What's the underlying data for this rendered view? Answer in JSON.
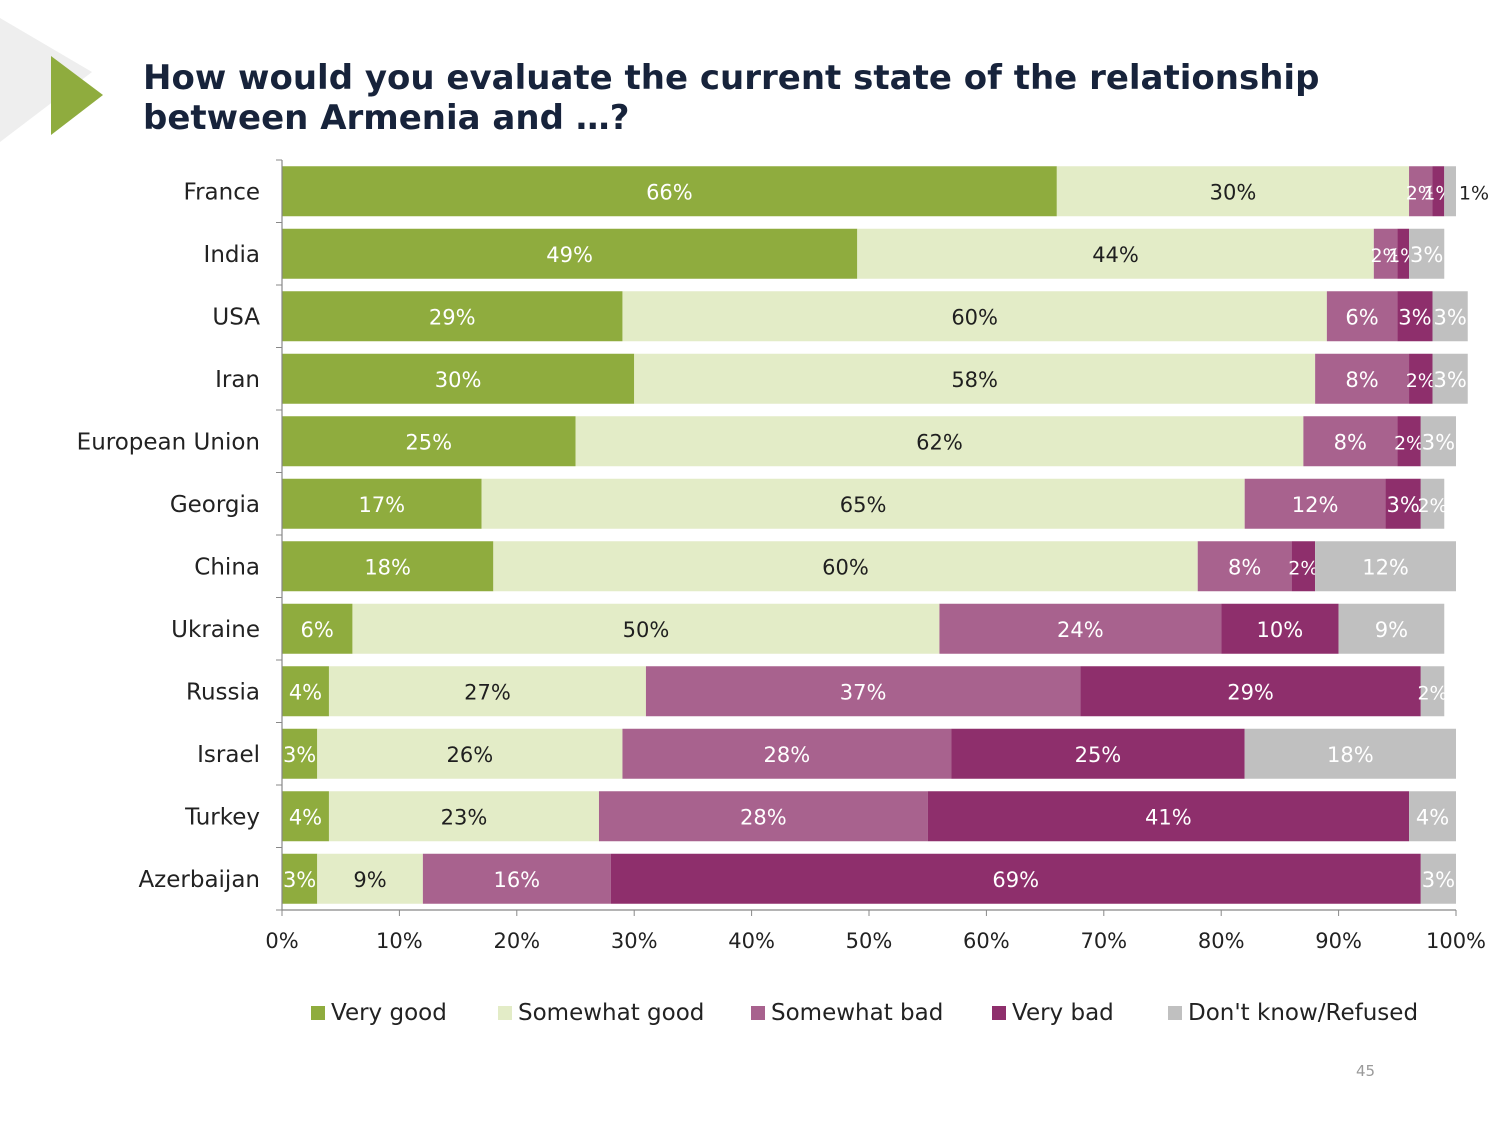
{
  "slide": {
    "title_line1": "How would you evaluate the current state of the relationship",
    "title_line2": "between Armenia and …?",
    "page_number": "45",
    "accent_color": "#8fac3e"
  },
  "chart_data": {
    "type": "bar",
    "orientation": "horizontal",
    "stacked": true,
    "title": "How would you evaluate the current state of the relationship between Armenia and …?",
    "categories": [
      "France",
      "India",
      "USA",
      "Iran",
      "European Union",
      "Georgia",
      "China",
      "Ukraine",
      "Russia",
      "Israel",
      "Turkey",
      "Azerbaijan"
    ],
    "series": [
      {
        "name": "Very good",
        "color": "#8fac3e",
        "label_color": "#ffffff",
        "values": [
          66,
          49,
          29,
          30,
          25,
          17,
          18,
          6,
          4,
          3,
          4,
          3
        ]
      },
      {
        "name": "Somewhat good",
        "color": "#e3ecc7",
        "label_color": "#1f1f1f",
        "values": [
          30,
          44,
          60,
          58,
          62,
          65,
          60,
          50,
          27,
          26,
          23,
          9
        ]
      },
      {
        "name": "Somewhat bad",
        "color": "#a8628e",
        "label_color": "#ffffff",
        "values": [
          2,
          2,
          6,
          8,
          8,
          12,
          8,
          24,
          37,
          28,
          28,
          16
        ]
      },
      {
        "name": "Very bad",
        "color": "#8e2f6c",
        "label_color": "#ffffff",
        "values": [
          1,
          1,
          3,
          2,
          2,
          3,
          2,
          10,
          29,
          25,
          41,
          69
        ]
      },
      {
        "name": "Don't know/Refused",
        "color": "#c0c0c0",
        "label_color": "#ffffff",
        "values": [
          1,
          3,
          3,
          3,
          3,
          2,
          12,
          9,
          2,
          18,
          4,
          3
        ]
      }
    ],
    "xlim": [
      0,
      100
    ],
    "x_ticks": [
      "0%",
      "10%",
      "20%",
      "30%",
      "40%",
      "50%",
      "60%",
      "70%",
      "80%",
      "90%",
      "100%"
    ],
    "legend_position": "bottom",
    "grid": false
  }
}
